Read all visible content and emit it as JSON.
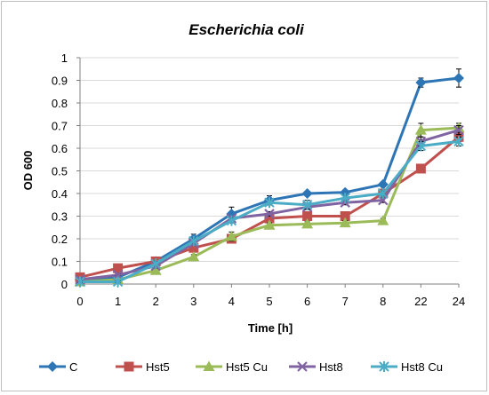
{
  "chart_data": {
    "type": "line",
    "title": "Escherichia coli",
    "xlabel": "Time [h]",
    "ylabel": "OD 600",
    "categories": [
      "0",
      "1",
      "2",
      "3",
      "4",
      "5",
      "6",
      "7",
      "8",
      "22",
      "24"
    ],
    "y_ticks": [
      "0",
      "0.1",
      "0.2",
      "0.3",
      "0.4",
      "0.5",
      "0.6",
      "0.7",
      "0.8",
      "0.9",
      "1"
    ],
    "ylim": [
      0,
      1
    ],
    "grid": "horizontal",
    "legend_position": "bottom",
    "series": [
      {
        "name": "C",
        "color": "#2e75b6",
        "marker": "diamond",
        "values": [
          0.02,
          0.03,
          0.1,
          0.2,
          0.31,
          0.37,
          0.4,
          0.405,
          0.44,
          0.89,
          0.91
        ],
        "errors": [
          0.005,
          0.005,
          0.01,
          0.02,
          0.03,
          0.02,
          0.01,
          0.01,
          0.01,
          0.02,
          0.04
        ]
      },
      {
        "name": "Hst5",
        "color": "#c0504d",
        "marker": "square",
        "values": [
          0.03,
          0.07,
          0.1,
          0.16,
          0.2,
          0.29,
          0.3,
          0.3,
          0.4,
          0.51,
          0.65
        ],
        "errors": [
          0.005,
          0.005,
          0.01,
          0.01,
          0.01,
          0.01,
          0.01,
          0.01,
          0.01,
          0.01,
          0.02
        ]
      },
      {
        "name": "Hst5 Cu",
        "color": "#9bbb59",
        "marker": "triangle",
        "values": [
          0.01,
          0.02,
          0.06,
          0.12,
          0.21,
          0.26,
          0.265,
          0.27,
          0.28,
          0.68,
          0.69
        ],
        "errors": [
          0.005,
          0.005,
          0.01,
          0.01,
          0.02,
          0.01,
          0.01,
          0.01,
          0.01,
          0.03,
          0.02
        ]
      },
      {
        "name": "Hst8",
        "color": "#8064a2",
        "marker": "x",
        "values": [
          0.02,
          0.04,
          0.08,
          0.18,
          0.29,
          0.31,
          0.34,
          0.36,
          0.37,
          0.63,
          0.68
        ],
        "errors": [
          0.005,
          0.005,
          0.01,
          0.01,
          0.01,
          0.01,
          0.01,
          0.01,
          0.01,
          0.02,
          0.02
        ]
      },
      {
        "name": "Hst8 Cu",
        "color": "#4bacc6",
        "marker": "star",
        "values": [
          0.01,
          0.01,
          0.09,
          0.19,
          0.28,
          0.36,
          0.35,
          0.38,
          0.4,
          0.61,
          0.63
        ],
        "errors": [
          0.005,
          0.005,
          0.01,
          0.01,
          0.01,
          0.01,
          0.02,
          0.01,
          0.01,
          0.02,
          0.02
        ]
      }
    ]
  }
}
